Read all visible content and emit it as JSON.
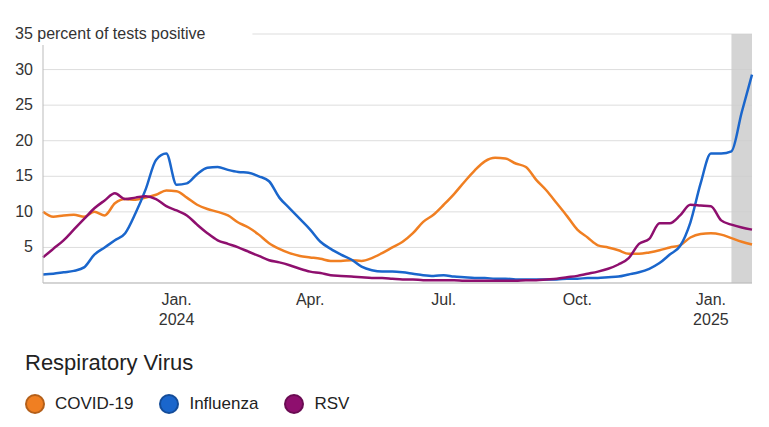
{
  "chart_data": {
    "type": "line",
    "categories": [
      null,
      null,
      null,
      null,
      null,
      null,
      null,
      null,
      null,
      null,
      null,
      null,
      null,
      "Jan.\n2024",
      null,
      null,
      null,
      null,
      null,
      null,
      null,
      null,
      null,
      null,
      null,
      null,
      "Apr.",
      null,
      null,
      null,
      null,
      null,
      null,
      null,
      null,
      null,
      null,
      null,
      null,
      "Jul.",
      null,
      null,
      null,
      null,
      null,
      null,
      null,
      null,
      null,
      null,
      null,
      null,
      "Oct.",
      null,
      null,
      null,
      null,
      null,
      null,
      null,
      null,
      null,
      null,
      null,
      null,
      "Jan.\n2025",
      null,
      null,
      null,
      null
    ],
    "series": [
      {
        "name": "COVID-19",
        "color": "#f07f22",
        "values": [
          10,
          9.3,
          9.5,
          9.6,
          9.3,
          10,
          9.5,
          11.2,
          11.8,
          11.7,
          12,
          12.4,
          13,
          12.9,
          12,
          11,
          10.4,
          10,
          9.5,
          8.5,
          7.8,
          6.8,
          5.6,
          4.8,
          4.2,
          3.8,
          3.6,
          3.4,
          3.1,
          3.1,
          3.2,
          3.1,
          3.5,
          4.2,
          5,
          5.8,
          7,
          8.6,
          9.6,
          11,
          12.5,
          14.2,
          15.8,
          17.1,
          17.6,
          17.5,
          16.8,
          16.3,
          14.5,
          13,
          11.2,
          9.4,
          7.5,
          6.4,
          5.3,
          5,
          4.6,
          4.1,
          4.1,
          4.3,
          4.6,
          5,
          5.3,
          6.4,
          6.9,
          7,
          6.8,
          6.3,
          5.8,
          5.4
        ]
      },
      {
        "name": "Influenza",
        "color": "#1a66cc",
        "values": [
          1.2,
          1.3,
          1.5,
          1.7,
          2.2,
          4.0,
          5.0,
          6.0,
          7.0,
          9.8,
          13.2,
          17.3,
          18.2,
          13.8,
          14.0,
          15.3,
          16.2,
          16.3,
          15.9,
          15.6,
          15.5,
          15.0,
          14.3,
          12.0,
          10.5,
          9.0,
          7.5,
          5.8,
          4.8,
          4.0,
          3.3,
          2.3,
          1.8,
          1.6,
          1.6,
          1.5,
          1.3,
          1.1,
          1.0,
          1.1,
          0.9,
          0.8,
          0.7,
          0.7,
          0.6,
          0.6,
          0.5,
          0.5,
          0.5,
          0.5,
          0.5,
          0.6,
          0.6,
          0.7,
          0.7,
          0.8,
          0.9,
          1.2,
          1.5,
          2.0,
          2.8,
          4.0,
          5.2,
          8.5,
          14.0,
          18.2,
          18.2,
          18.5,
          24.0,
          29.3
        ]
      },
      {
        "name": "RSV",
        "color": "#8e0f6e",
        "values": [
          3.6,
          4.8,
          6.0,
          7.5,
          9.0,
          10.5,
          11.6,
          12.6,
          11.8,
          12.0,
          12.2,
          11.8,
          10.8,
          10.2,
          9.5,
          8.2,
          7.0,
          6.0,
          5.5,
          5.0,
          4.4,
          3.8,
          3.2,
          2.9,
          2.5,
          2.0,
          1.6,
          1.4,
          1.1,
          1.0,
          0.9,
          0.8,
          0.7,
          0.7,
          0.6,
          0.5,
          0.5,
          0.4,
          0.4,
          0.4,
          0.4,
          0.3,
          0.3,
          0.3,
          0.3,
          0.3,
          0.3,
          0.4,
          0.4,
          0.5,
          0.6,
          0.8,
          1.0,
          1.3,
          1.6,
          2.0,
          2.6,
          3.5,
          5.5,
          6.2,
          8.4,
          8.4,
          9.5,
          11.0,
          10.9,
          10.8,
          8.8,
          8.2,
          7.8,
          7.5
        ]
      }
    ],
    "ylim": [
      0,
      35
    ],
    "yticks": [
      5,
      10,
      15,
      20,
      25,
      30,
      {
        "value": 35,
        "label": "35 percent of tests positive"
      }
    ],
    "grid": true,
    "shaded": [
      67,
      69
    ],
    "legend": "bottom",
    "legend_title": "Respiratory Virus"
  }
}
